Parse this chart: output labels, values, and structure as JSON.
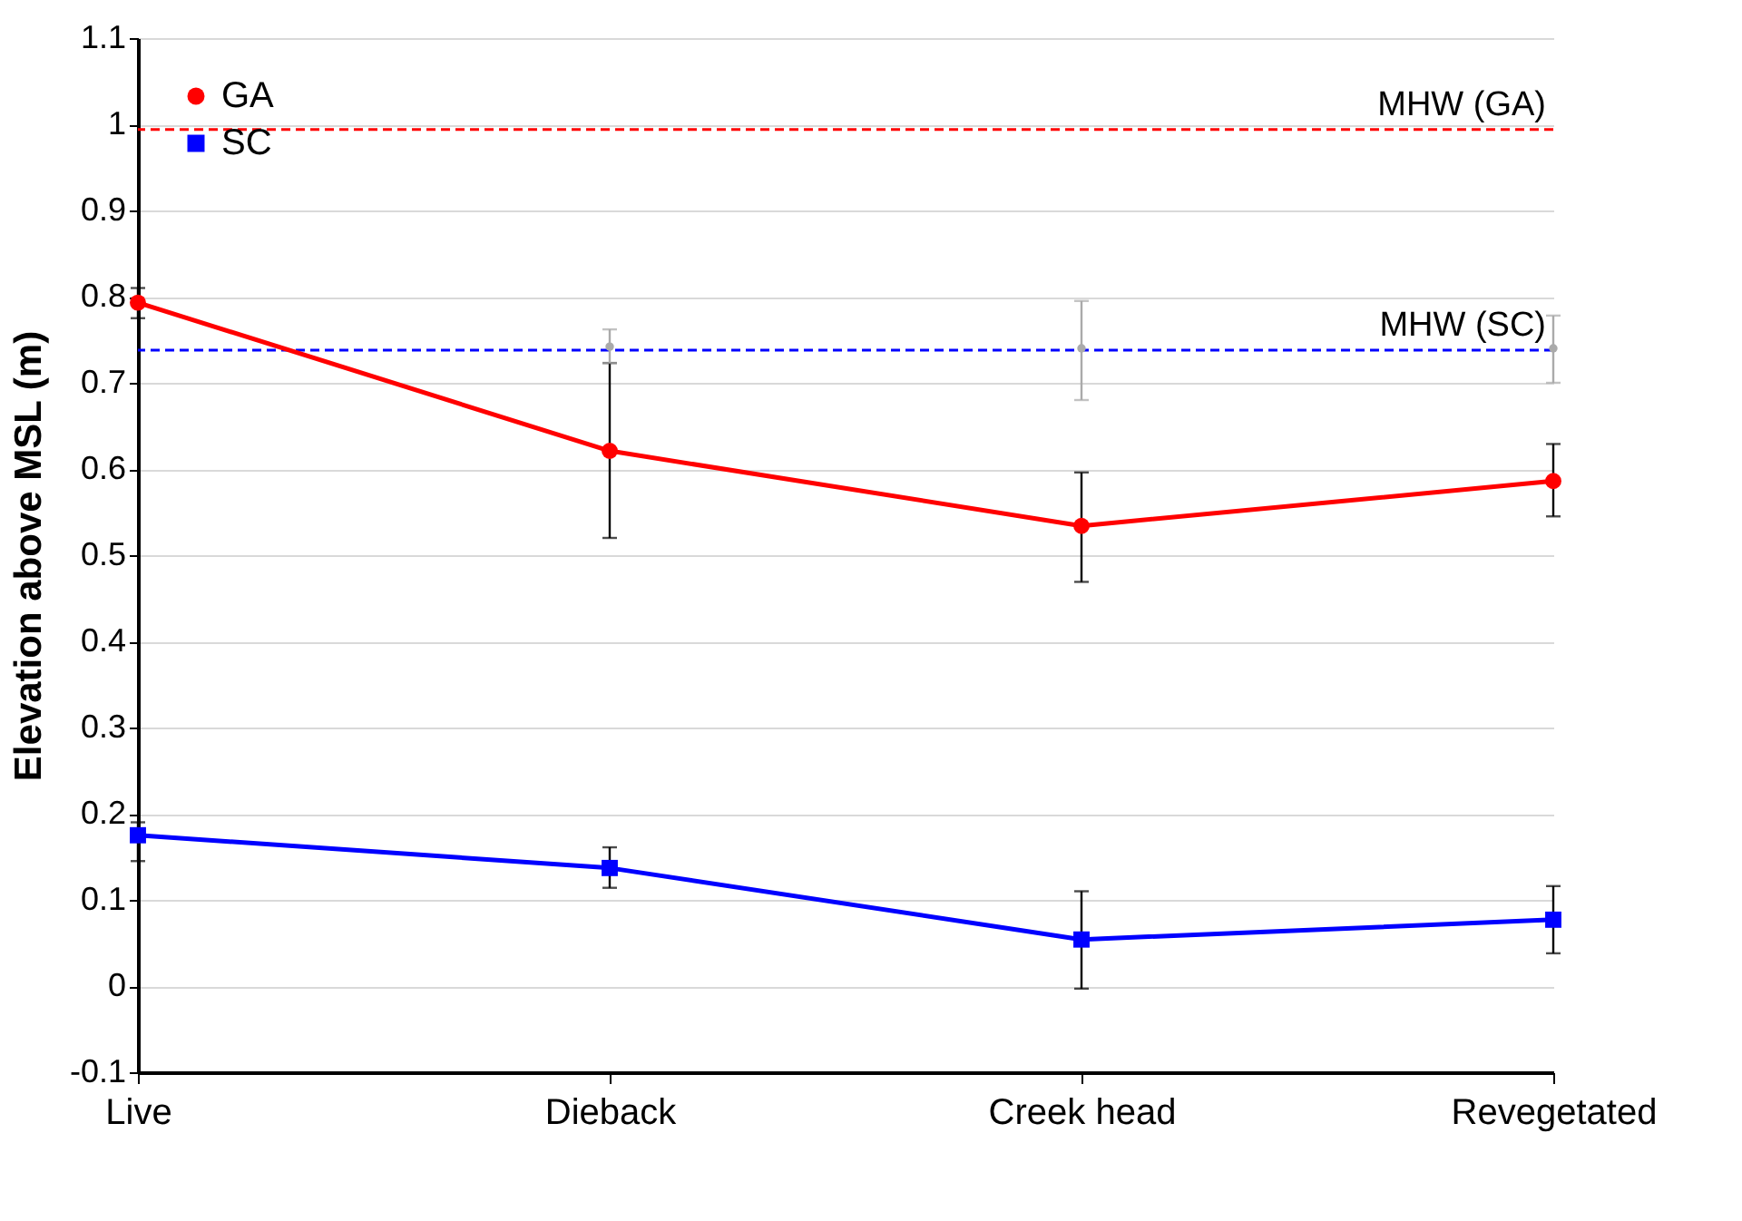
{
  "chart_data": {
    "type": "line",
    "ylabel": "Elevation above MSL (m)",
    "categories": [
      "Live",
      "Dieback",
      "Creek head",
      "Revegetated"
    ],
    "series": [
      {
        "name": "GA",
        "color": "#ff0000",
        "marker": "circle",
        "values": [
          0.793,
          0.621,
          0.534,
          0.586
        ],
        "errors": [
          [
            0.775,
            0.81
          ],
          [
            0.52,
            0.723
          ],
          [
            0.469,
            0.596
          ],
          [
            0.545,
            0.629
          ]
        ]
      },
      {
        "name": "SC",
        "color": "#0000ff",
        "marker": "square",
        "values": [
          0.175,
          0.137,
          0.054,
          0.077
        ],
        "errors": [
          [
            0.145,
            0.19
          ],
          [
            0.114,
            0.161
          ],
          [
            -0.003,
            0.11
          ],
          [
            0.038,
            0.116
          ]
        ]
      },
      {
        "type": "scatter",
        "color": "#aaaaaa",
        "marker": "circle",
        "values": [
          null,
          0.742,
          0.74,
          0.74
        ],
        "errors": [
          null,
          [
            0.723,
            0.762
          ],
          [
            0.68,
            0.795
          ],
          [
            0.7,
            0.778
          ]
        ]
      }
    ],
    "ref_lines": [
      {
        "axis": "y",
        "value": 0.994,
        "label": "MHW (GA)",
        "color": "#ff0000",
        "line_style": "dashed"
      },
      {
        "axis": "y",
        "value": 0.738,
        "label": "MHW (SC)",
        "color": "#0000ff",
        "line_style": "dashed"
      }
    ],
    "ylim": [
      -0.1,
      1.1
    ],
    "yticks": [
      -0.1,
      0,
      0.1,
      0.2,
      0.3,
      0.4,
      0.5,
      0.6,
      0.7,
      0.8,
      0.9,
      1,
      1.1
    ],
    "grid": "y",
    "legend": "top left",
    "line_style": "solid"
  }
}
